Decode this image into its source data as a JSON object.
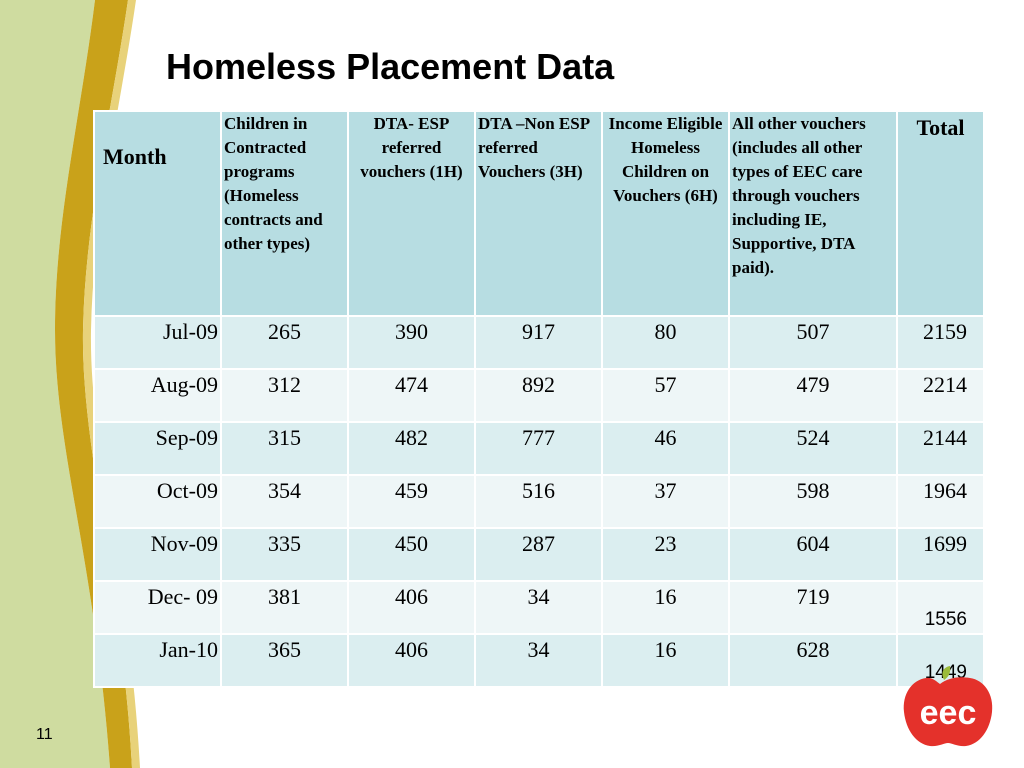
{
  "slide": {
    "title": "Homeless Placement Data",
    "page_number": "11",
    "logo_text": "eec"
  },
  "table": {
    "headers": [
      "Month",
      "Children in Contracted programs (Homeless contracts and other types)",
      "DTA- ESP referred vouchers (1H)",
      "DTA –Non ESP referred Vouchers (3H)",
      "Income Eligible Homeless Children on Vouchers (6H)",
      "All other vouchers (includes all other types of EEC care through vouchers including IE, Supportive, DTA paid).",
      "Total"
    ],
    "rows": [
      {
        "month": "Jul-09",
        "contracted": "265",
        "esp": "390",
        "non_esp": "917",
        "income": "80",
        "other": "507",
        "total": "2159"
      },
      {
        "month": "Aug-09",
        "contracted": "312",
        "esp": "474",
        "non_esp": "892",
        "income": "57",
        "other": "479",
        "total": "2214"
      },
      {
        "month": "Sep-09",
        "contracted": "315",
        "esp": "482",
        "non_esp": "777",
        "income": "46",
        "other": "524",
        "total": "2144"
      },
      {
        "month": "Oct-09",
        "contracted": "354",
        "esp": "459",
        "non_esp": "516",
        "income": "37",
        "other": "598",
        "total": "1964"
      },
      {
        "month": "Nov-09",
        "contracted": "335",
        "esp": "450",
        "non_esp": "287",
        "income": "23",
        "other": "604",
        "total": "1699"
      },
      {
        "month": "Dec- 09",
        "contracted": "381",
        "esp": "406",
        "non_esp": "34",
        "income": "16",
        "other": "719",
        "total": "1556"
      },
      {
        "month": "Jan-10",
        "contracted": "365",
        "esp": "406",
        "non_esp": "34",
        "income": "16",
        "other": "628",
        "total": "1449"
      }
    ]
  },
  "colors": {
    "header_bg": "#b7dde2",
    "row_odd_bg": "#dbeef0",
    "row_even_bg": "#eef6f7",
    "deco_green": "#cfdca0",
    "deco_gold": "#c9a21a",
    "logo_red": "#e4312b",
    "logo_leaf": "#9bbb3a"
  }
}
